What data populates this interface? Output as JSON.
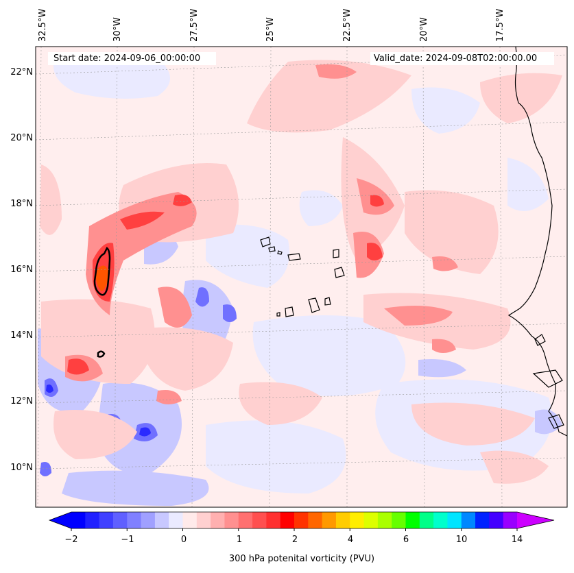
{
  "map": {
    "lon_labels": [
      "32.5°W",
      "30°W",
      "27.5°W",
      "25°W",
      "22.5°W",
      "20°W",
      "17.5°W"
    ],
    "lat_labels": [
      "22°N",
      "20°N",
      "18°N",
      "16°N",
      "14°N",
      "12°N",
      "10°N"
    ],
    "start_date": "Start date: 2024-09-06_00:00:00",
    "valid_date": "Valid_date: 2024-09-08T02:00:00.00",
    "field": "300 hPa potential vorticity",
    "contour_highlight_color": "#000000"
  },
  "colorbar": {
    "label": "300 hPa potenital vorticity (PVU)",
    "ticks": [
      "−2",
      "−1",
      "0",
      "1",
      "2",
      "4",
      "6",
      "10",
      "14"
    ],
    "colors": [
      "#0000ff",
      "#2020ff",
      "#4040ff",
      "#6060ff",
      "#8080ff",
      "#a0a0ff",
      "#c8c8ff",
      "#eaeaff",
      "#ffeaea",
      "#ffd0d0",
      "#ffb0b0",
      "#ff9090",
      "#ff7070",
      "#ff5050",
      "#ff3030",
      "#ff0000",
      "#ff3300",
      "#ff6600",
      "#ff9900",
      "#ffcc00",
      "#ffee00",
      "#ddff00",
      "#aaff00",
      "#66ff00",
      "#00ff00",
      "#00ff88",
      "#00ffcc",
      "#00e5ff",
      "#0088ff",
      "#0022ff",
      "#4400ff",
      "#9900ff"
    ],
    "extend_low_color": "#0000ff",
    "extend_high_color": "#cc00ff"
  }
}
